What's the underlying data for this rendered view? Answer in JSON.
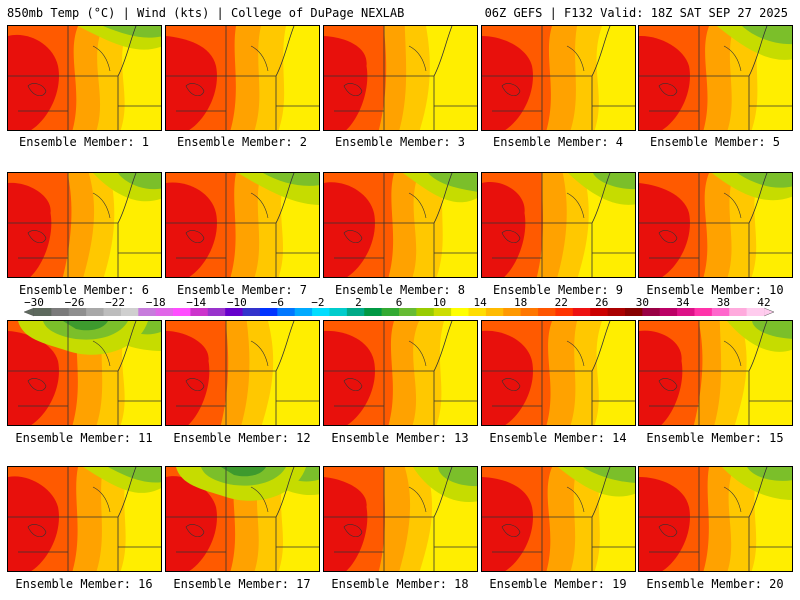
{
  "header": {
    "left": "850mb Temp (°C) | Wind (kts) | College of DuPage NEXLAB",
    "right": "06Z GEFS | F132 Valid: 18Z SAT SEP 27 2025"
  },
  "colorbar": {
    "tick_labels": [
      "−30",
      "−26",
      "−22",
      "−18",
      "−14",
      "−10",
      "−6",
      "−2",
      "2",
      "6",
      "10",
      "14",
      "18",
      "22",
      "26",
      "30",
      "34",
      "38",
      "42"
    ],
    "range": [
      -30,
      42
    ],
    "colors": [
      "#5e6a5e",
      "#7b7b7b",
      "#8f8f8f",
      "#a8a8a8",
      "#bdbdbd",
      "#cfcfcf",
      "#c77cdc",
      "#e066e8",
      "#ff4dff",
      "#cc33cc",
      "#9933cc",
      "#6600cc",
      "#3333cc",
      "#0033ff",
      "#0077ff",
      "#00aaff",
      "#00ddff",
      "#00cccc",
      "#00aa88",
      "#009944",
      "#33aa33",
      "#66bb33",
      "#99cc00",
      "#ccdd00",
      "#ffff00",
      "#ffdd00",
      "#ffbb00",
      "#ff9900",
      "#ff7700",
      "#ff5500",
      "#ff3300",
      "#ee1111",
      "#cc0000",
      "#aa0000",
      "#880000",
      "#990044",
      "#bb0066",
      "#dd1188",
      "#ff33aa",
      "#ff66cc",
      "#ffaadd",
      "#ffccee"
    ]
  },
  "members": [
    {
      "label": "Ensemble Member: 1"
    },
    {
      "label": "Ensemble Member: 2"
    },
    {
      "label": "Ensemble Member: 3"
    },
    {
      "label": "Ensemble Member: 4"
    },
    {
      "label": "Ensemble Member: 5"
    },
    {
      "label": "Ensemble Member: 6"
    },
    {
      "label": "Ensemble Member: 7"
    },
    {
      "label": "Ensemble Member: 8"
    },
    {
      "label": "Ensemble Member: 9"
    },
    {
      "label": "Ensemble Member: 10"
    },
    {
      "label": "Ensemble Member: 11"
    },
    {
      "label": "Ensemble Member: 12"
    },
    {
      "label": "Ensemble Member: 13"
    },
    {
      "label": "Ensemble Member: 14"
    },
    {
      "label": "Ensemble Member: 15"
    },
    {
      "label": "Ensemble Member: 16"
    },
    {
      "label": "Ensemble Member: 17"
    },
    {
      "label": "Ensemble Member: 18"
    },
    {
      "label": "Ensemble Member: 19"
    },
    {
      "label": "Ensemble Member: 20"
    }
  ],
  "palette": {
    "hot": "#e8100c",
    "warm": "#ff5a00",
    "orange": "#ffa200",
    "amber": "#ffc800",
    "yellow": "#ffee00",
    "lime": "#c6dc00",
    "green": "#7bbf2a",
    "dkgreen": "#3d9a2e",
    "border": "#333333"
  }
}
